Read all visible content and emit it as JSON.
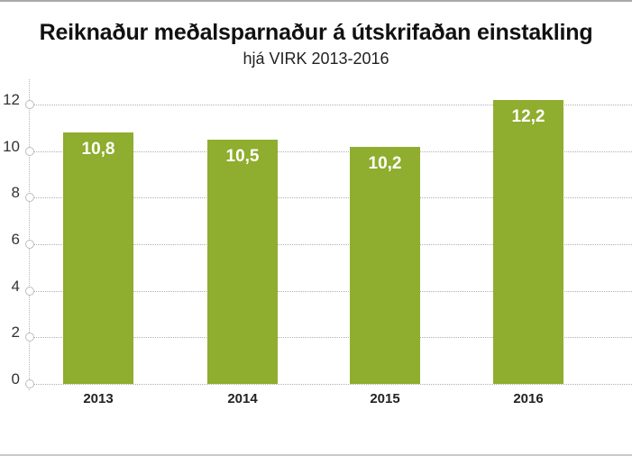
{
  "header": {
    "title": "Reiknaður meðalsparnaður á útskrifaðan einstakling",
    "subtitle": "hjá VIRK 2013-2016"
  },
  "colors": {
    "bar": "#8fad2e",
    "bar_label": "#ffffff",
    "gridline": "#b0b0b0"
  },
  "axis": {
    "y_ticks": [
      "0",
      "2",
      "4",
      "6",
      "8",
      "10",
      "12"
    ]
  },
  "bars": [
    {
      "year": "2013",
      "value_label": "10,8"
    },
    {
      "year": "2014",
      "value_label": "10,5"
    },
    {
      "year": "2015",
      "value_label": "10,2"
    },
    {
      "year": "2016",
      "value_label": "12,2"
    }
  ],
  "chart_data": {
    "type": "bar",
    "title": "Reiknaður meðalsparnaður á útskrifaðan einstakling",
    "subtitle": "hjá VIRK 2013-2016",
    "categories": [
      "2013",
      "2014",
      "2015",
      "2016"
    ],
    "values": [
      10.8,
      10.5,
      10.2,
      12.2
    ],
    "data_labels": [
      "10,8",
      "10,5",
      "10,2",
      "12,2"
    ],
    "xlabel": "",
    "ylabel": "",
    "ylim": [
      0,
      12
    ],
    "y_ticks": [
      0,
      2,
      4,
      6,
      8,
      10,
      12
    ],
    "grid": true,
    "legend": null
  }
}
